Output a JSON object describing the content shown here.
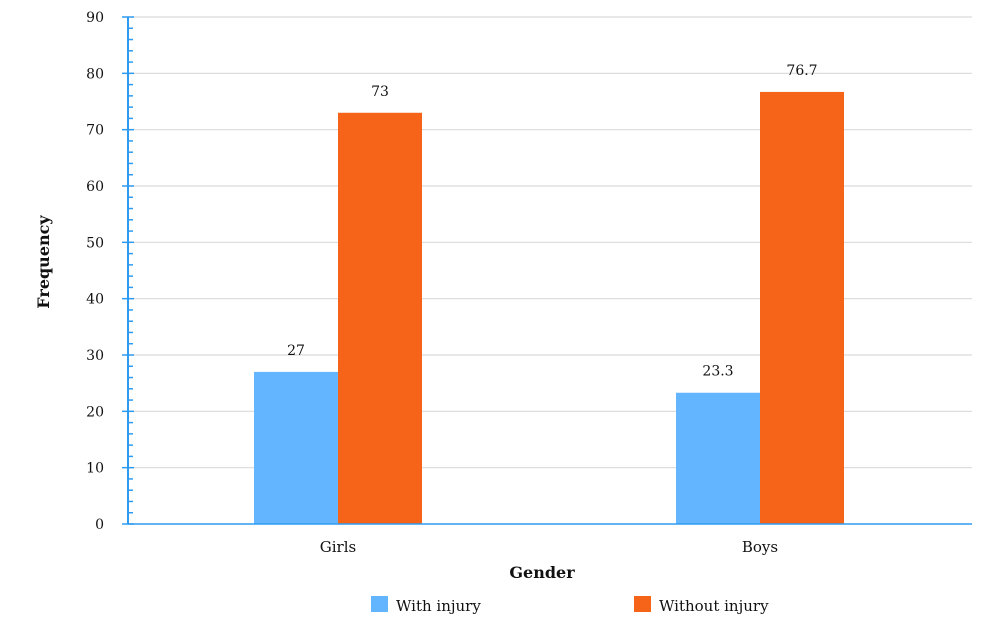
{
  "chart_data": {
    "type": "bar",
    "xlabel": "Gender",
    "ylabel": "Frequency",
    "categories": [
      "Girls",
      "Boys"
    ],
    "yticks": [
      "0",
      "10",
      "20",
      "30",
      "40",
      "50",
      "60",
      "70",
      "80",
      "90"
    ],
    "ylim": [
      0,
      90
    ],
    "grid": true,
    "legend_position": "bottom",
    "series": [
      {
        "name": "With injury",
        "values": [
          27,
          23.3
        ],
        "labels": [
          "27",
          "23.3"
        ],
        "color": "#63b5ff"
      },
      {
        "name": "Without injury",
        "values": [
          73,
          76.7
        ],
        "labels": [
          "73",
          "76.7"
        ],
        "color": "#f56418"
      }
    ],
    "axis_color": "#2e9bf0",
    "grid_color": "#d9d9d9"
  }
}
